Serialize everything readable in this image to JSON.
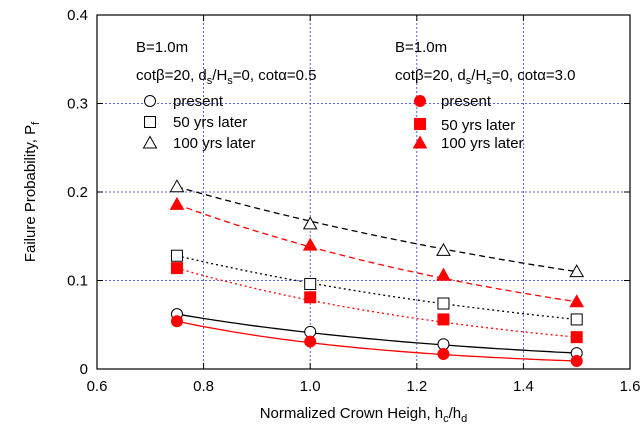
{
  "chart_data": {
    "type": "scatter",
    "xlabel": "Normalized Crown Heigh, h",
    "xlabel_sub1": "c",
    "xlabel_mid": "/h",
    "xlabel_sub2": "d",
    "ylabel": "Failure Probability, P",
    "ylabel_sub": "f",
    "xlim": [
      0.6,
      1.6
    ],
    "ylim": [
      0,
      0.4
    ],
    "xticks": [
      0.6,
      0.8,
      1.0,
      1.2,
      1.4,
      1.6
    ],
    "yticks": [
      0,
      0.1,
      0.2,
      0.3,
      0.4
    ],
    "xtick_labels": [
      "0.6",
      "0.8",
      "1.0",
      "1.2",
      "1.4",
      "1.6"
    ],
    "ytick_labels": [
      "0",
      "0.1",
      "0.2",
      "0.3",
      "0.4"
    ],
    "grid": true,
    "x": [
      0.75,
      1.0,
      1.25,
      1.5
    ],
    "series": [
      {
        "group": "cota05",
        "name": "present",
        "marker": "circle-open",
        "color": "#000000",
        "line": "solid",
        "values": [
          0.062,
          0.042,
          0.028,
          0.018
        ]
      },
      {
        "group": "cota05",
        "name": "50 yrs later",
        "marker": "square-open",
        "color": "#000000",
        "line": "dotted",
        "values": [
          0.128,
          0.096,
          0.074,
          0.056
        ]
      },
      {
        "group": "cota05",
        "name": "100 yrs later",
        "marker": "triangle-open",
        "color": "#000000",
        "line": "dashed",
        "values": [
          0.206,
          0.164,
          0.134,
          0.11
        ]
      },
      {
        "group": "cota30",
        "name": "present",
        "marker": "circle-filled",
        "color": "#ff0000",
        "line": "solid",
        "values": [
          0.054,
          0.031,
          0.017,
          0.009
        ]
      },
      {
        "group": "cota30",
        "name": "50 yrs later",
        "marker": "square-filled",
        "color": "#ff0000",
        "line": "dotted",
        "values": [
          0.114,
          0.081,
          0.056,
          0.036
        ]
      },
      {
        "group": "cota30",
        "name": "100 yrs later",
        "marker": "triangle-filled",
        "color": "#ff0000",
        "line": "dashed",
        "values": [
          0.186,
          0.14,
          0.106,
          0.076
        ]
      }
    ],
    "legends": [
      {
        "group": "cota05",
        "title1": "B=1.0m",
        "title2_prefix": "cot",
        "title2_beta": "β",
        "title2_mid": "=20, d",
        "title2_sub": "s",
        "title2_mid2": "/H",
        "title2_sub2": "s",
        "title2_mid3": "=0, cot",
        "title2_alpha": "α",
        "title2_end": "=0.5",
        "items": [
          "present",
          "50 yrs later",
          "100 yrs later"
        ]
      },
      {
        "group": "cota30",
        "title1": "B=1.0m",
        "title2_prefix": "cot",
        "title2_beta": "β",
        "title2_mid": "=20, d",
        "title2_sub": "s",
        "title2_mid2": "/H",
        "title2_sub2": "s",
        "title2_mid3": "=0, cot",
        "title2_alpha": "α",
        "title2_end": "=3.0",
        "items": [
          "present",
          "50 yrs later",
          "100 yrs later"
        ]
      }
    ]
  }
}
